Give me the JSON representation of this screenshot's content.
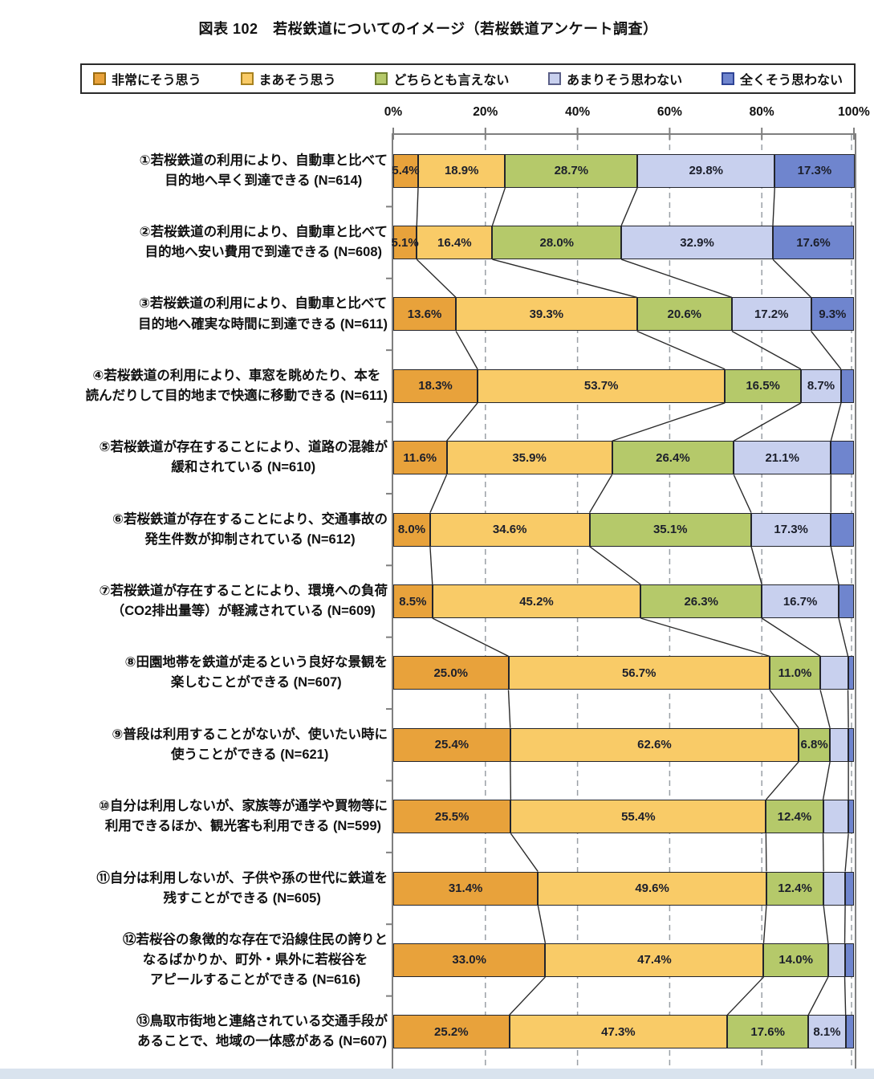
{
  "title": "図表 102　若桜鉄道についてのイメージ（若桜鉄道アンケート調査）",
  "chart_data": {
    "type": "bar",
    "stacked": true,
    "orientation": "horizontal",
    "x_axis": {
      "ticks": [
        "0%",
        "20%",
        "40%",
        "60%",
        "80%",
        "100%"
      ],
      "range": [
        0,
        100
      ],
      "gridlines": "dashed"
    },
    "legend_position": "top",
    "series": [
      {
        "name": "非常にそう思う",
        "color": "#E8A23B",
        "border": "#9A6B10"
      },
      {
        "name": "まあそう思う",
        "color": "#F9CB67",
        "border": "#A8821F"
      },
      {
        "name": "どちらとも言えない",
        "color": "#B5C96A",
        "border": "#6E7F2F"
      },
      {
        "name": "あまりそう思わない",
        "color": "#C8D0EE",
        "border": "#5A5F87"
      },
      {
        "name": "全くそう思わない",
        "color": "#6F85CE",
        "border": "#2F4496"
      }
    ],
    "rows": [
      {
        "category_lines": [
          "①若桜鉄道の利用により、自動車と比べて",
          "目的地へ早く到達できる (N=614)"
        ],
        "values": [
          5.4,
          18.9,
          28.7,
          29.8,
          17.3
        ],
        "labels": [
          "5.4%",
          "18.9%",
          "28.7%",
          "29.8%",
          "17.3%"
        ]
      },
      {
        "category_lines": [
          "②若桜鉄道の利用により、自動車と比べて",
          "目的地へ安い費用で到達できる (N=608)"
        ],
        "values": [
          5.1,
          16.4,
          28.0,
          32.9,
          17.6
        ],
        "labels": [
          "5.1%",
          "16.4%",
          "28.0%",
          "32.9%",
          "17.6%"
        ]
      },
      {
        "category_lines": [
          "③若桜鉄道の利用により、自動車と比べて",
          "目的地へ確実な時間に到達できる (N=611)"
        ],
        "values": [
          13.6,
          39.3,
          20.6,
          17.2,
          9.3
        ],
        "labels": [
          "13.6%",
          "39.3%",
          "20.6%",
          "17.2%",
          "9.3%"
        ]
      },
      {
        "category_lines": [
          "④若桜鉄道の利用により、車窓を眺めたり、本を",
          "読んだりして目的地まで快適に移動できる (N=611)"
        ],
        "values": [
          18.3,
          53.7,
          16.5,
          8.7,
          2.8
        ],
        "labels": [
          "18.3%",
          "53.7%",
          "16.5%",
          "8.7%",
          null
        ]
      },
      {
        "category_lines": [
          "⑤若桜鉄道が存在することにより、道路の混雑が",
          "緩和されている (N=610)"
        ],
        "values": [
          11.6,
          35.9,
          26.4,
          21.1,
          5.0
        ],
        "labels": [
          "11.6%",
          "35.9%",
          "26.4%",
          "21.1%",
          null
        ]
      },
      {
        "category_lines": [
          "⑥若桜鉄道が存在することにより、交通事故の",
          "発生件数が抑制されている (N=612)"
        ],
        "values": [
          8.0,
          34.6,
          35.1,
          17.3,
          5.0
        ],
        "labels": [
          "8.0%",
          "34.6%",
          "35.1%",
          "17.3%",
          null
        ]
      },
      {
        "category_lines": [
          "⑦若桜鉄道が存在することにより、環境への負荷",
          "（CO2排出量等）が軽減されている (N=609)"
        ],
        "values": [
          8.5,
          45.2,
          26.3,
          16.7,
          3.3
        ],
        "labels": [
          "8.5%",
          "45.2%",
          "26.3%",
          "16.7%",
          null
        ]
      },
      {
        "category_lines": [
          "⑧田園地帯を鉄道が走るという良好な景観を",
          "楽しむことができる (N=607)"
        ],
        "values": [
          25.0,
          56.7,
          11.0,
          6.0,
          1.3
        ],
        "labels": [
          "25.0%",
          "56.7%",
          "11.0%",
          null,
          null
        ]
      },
      {
        "category_lines": [
          "⑨普段は利用することがないが、使いたい時に",
          "使うことができる (N=621)"
        ],
        "values": [
          25.4,
          62.6,
          6.8,
          4.0,
          1.2
        ],
        "labels": [
          "25.4%",
          "62.6%",
          "6.8%",
          null,
          null
        ]
      },
      {
        "category_lines": [
          "⑩自分は利用しないが、家族等が通学や買物等に",
          "利用できるほか、観光客も利用できる (N=599)"
        ],
        "values": [
          25.5,
          55.4,
          12.4,
          5.5,
          1.2
        ],
        "labels": [
          "25.5%",
          "55.4%",
          "12.4%",
          null,
          null
        ]
      },
      {
        "category_lines": [
          "⑪自分は利用しないが、子供や孫の世代に鉄道を",
          "残すことができる (N=605)"
        ],
        "values": [
          31.4,
          49.6,
          12.4,
          4.7,
          1.9
        ],
        "labels": [
          "31.4%",
          "49.6%",
          "12.4%",
          null,
          null
        ]
      },
      {
        "category_lines": [
          "⑫若桜谷の象徴的な存在で沿線住民の誇りと",
          "なるばかりか、町外・県外に若桜谷を",
          "アピールすることができる (N=616)"
        ],
        "values": [
          33.0,
          47.4,
          14.0,
          3.6,
          2.0
        ],
        "labels": [
          "33.0%",
          "47.4%",
          "14.0%",
          null,
          null
        ]
      },
      {
        "category_lines": [
          "⑬鳥取市街地と連絡されている交通手段が",
          "あることで、地域の一体感がある (N=607)"
        ],
        "values": [
          25.2,
          47.3,
          17.6,
          8.1,
          1.8
        ],
        "labels": [
          "25.2%",
          "47.3%",
          "17.6%",
          "8.1%",
          null
        ]
      }
    ]
  }
}
